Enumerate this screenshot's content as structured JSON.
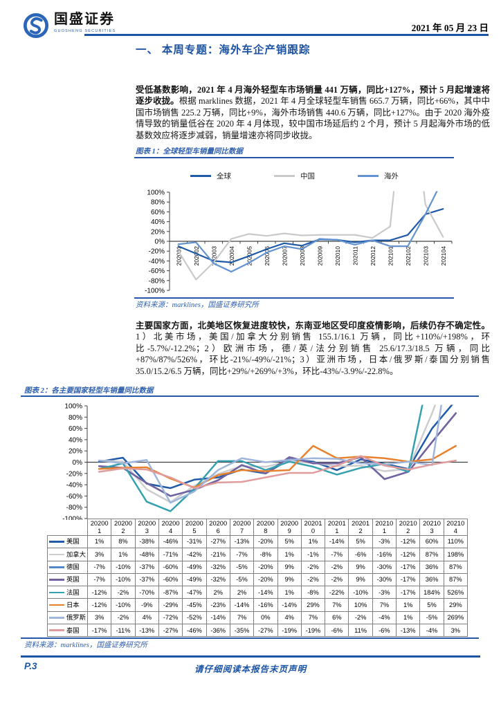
{
  "header": {
    "brand_cn": "国盛证券",
    "brand_en": "GUOSHENG SECURITIES",
    "date": "2021 年 05 月 23 日"
  },
  "section_title": "一、 本周专题：海外车企产销跟踪",
  "para1": {
    "bold": "受低基数影响，2021 年 4 月海外轻型车市场销量 441 万辆，同比+127%，预计 5 月起增速将逐步收拢。",
    "rest": "根据 marklines 数据，2021 年 4 月全球轻型车销售 665.7 万辆，同比+66%，其中中国市场销售 225.2 万辆，同比+9%，海外市场销售 440.6 万辆，同比+127%。由于 2020 海外疫情导致的销量低谷在 2020 年 4 月体现，较中国市场延后约 2 个月，预计 5 月起海外市场的低基数效应将逐步减弱，销量增速亦将同步收拢。"
  },
  "para2": {
    "bold": "主要国家方面，北美地区恢复进度较快，东南亚地区受印度疫情影响，后续仍存不确定性。",
    "rest": "1）北美市场，美国/加拿大分别销售 155.1/16.1 万辆，同比+110%/+198%，环比-5.7%/-12.2%；2）欧洲市场，德/英/法分别销售 25.6/17.3/18.5 万辆，同比+87%/87%/526%，环比-21%/-49%/-21%；3）亚洲市场，日本/俄罗斯/泰国分别销售 35.0/15.2/6.5 万辆，同比+29%/+269%/+3%，环比-43%/-3.9%/-22.8%。"
  },
  "figure1": {
    "caption": "图表 1：全球轻型车销量同比数据",
    "source": "资料来源：marklines，国盛证券研究所"
  },
  "figure2": {
    "caption": "图表 2：各主要国家轻型车销量同比数据",
    "source": "资料来源：marklines，国盛证券研究所"
  },
  "footer": {
    "page": "P.3",
    "disclaimer": "请仔细阅读本报告末页声明"
  },
  "chart_data": [
    {
      "type": "line",
      "title": "全球轻型车销量同比数据",
      "categories": [
        "202001",
        "202002",
        "202003",
        "202004",
        "202005",
        "202006",
        "202007",
        "202008",
        "202009",
        "202010",
        "202011",
        "202012",
        "202101",
        "202102",
        "202103",
        "202104"
      ],
      "xlabel": "",
      "ylabel": "",
      "ylim": [
        -100,
        100
      ],
      "ytick_step": 20,
      "grid": false,
      "legend_position": "top",
      "series": [
        {
          "name": "全球",
          "color": "#1F5AA8",
          "values": [
            -10,
            -25,
            -40,
            -43,
            -30,
            -16,
            -4,
            -9,
            4,
            3,
            -2,
            2,
            2,
            13,
            55,
            66
          ]
        },
        {
          "name": "中国",
          "color": "#C9C9C9",
          "values": [
            -20,
            -78,
            -43,
            5,
            15,
            11,
            16,
            12,
            13,
            13,
            13,
            7,
            30,
            371,
            75,
            9
          ]
        },
        {
          "name": "海外",
          "color": "#6292CF",
          "values": [
            -6,
            -2,
            -45,
            -62,
            -44,
            -23,
            -10,
            -16,
            5,
            3,
            -7,
            2,
            -10,
            -10,
            55,
            127
          ]
        }
      ]
    },
    {
      "type": "line",
      "title": "各主要国家轻型车销量同比数据",
      "categories": [
        "202001",
        "202002",
        "202003",
        "202004",
        "202005",
        "202006",
        "202007",
        "202008",
        "202009",
        "202010",
        "202011",
        "202012",
        "202101",
        "202102",
        "202103",
        "202104"
      ],
      "xlabel": "",
      "ylabel": "",
      "ylim": [
        -100,
        100
      ],
      "ytick_step": 20,
      "grid": false,
      "legend_position": "table-left",
      "value_suffix": "%",
      "series": [
        {
          "name": "美国",
          "color": "#1F5AA8",
          "values": [
            1,
            8,
            -38,
            -46,
            -31,
            -27,
            -13,
            -20,
            5,
            1,
            -14,
            5,
            -3,
            -12,
            60,
            110
          ]
        },
        {
          "name": "加拿大",
          "color": "#CDCDCD",
          "values": [
            3,
            1,
            -48,
            -71,
            -42,
            -21,
            -7,
            -8,
            1,
            -1,
            -7,
            -6,
            -16,
            -12,
            87,
            198
          ]
        },
        {
          "name": "德国",
          "color": "#5287C9",
          "values": [
            -7,
            -10,
            -37,
            -60,
            -49,
            -32,
            -5,
            -20,
            9,
            -2,
            -2,
            9,
            -30,
            -17,
            36,
            87
          ]
        },
        {
          "name": "英国",
          "color": "#73629F",
          "values": [
            -7,
            -10,
            -37,
            -60,
            -49,
            -32,
            -5,
            -20,
            9,
            -2,
            -2,
            9,
            -30,
            -17,
            36,
            87
          ]
        },
        {
          "name": "法国",
          "color": "#35A0B0",
          "values": [
            -12,
            -2,
            -70,
            -87,
            -47,
            2,
            2,
            -14,
            1,
            -8,
            -22,
            -10,
            -3,
            -17,
            184,
            526
          ]
        },
        {
          "name": "日本",
          "color": "#E8812D",
          "values": [
            -12,
            -10,
            -9,
            -29,
            -45,
            -23,
            -14,
            -16,
            -14,
            29,
            7,
            10,
            7,
            1,
            5,
            29
          ]
        },
        {
          "name": "俄罗斯",
          "color": "#9FB6DC",
          "values": [
            3,
            -2,
            4,
            -72,
            -52,
            -14,
            7,
            0,
            4,
            7,
            6,
            -2,
            -4,
            1,
            -5,
            269
          ]
        },
        {
          "name": "泰国",
          "color": "#E09C9C",
          "values": [
            -17,
            -11,
            -13,
            -27,
            -46,
            -36,
            -35,
            -27,
            -19,
            -19,
            -6,
            11,
            -6,
            -13,
            -4,
            3
          ]
        }
      ]
    }
  ]
}
